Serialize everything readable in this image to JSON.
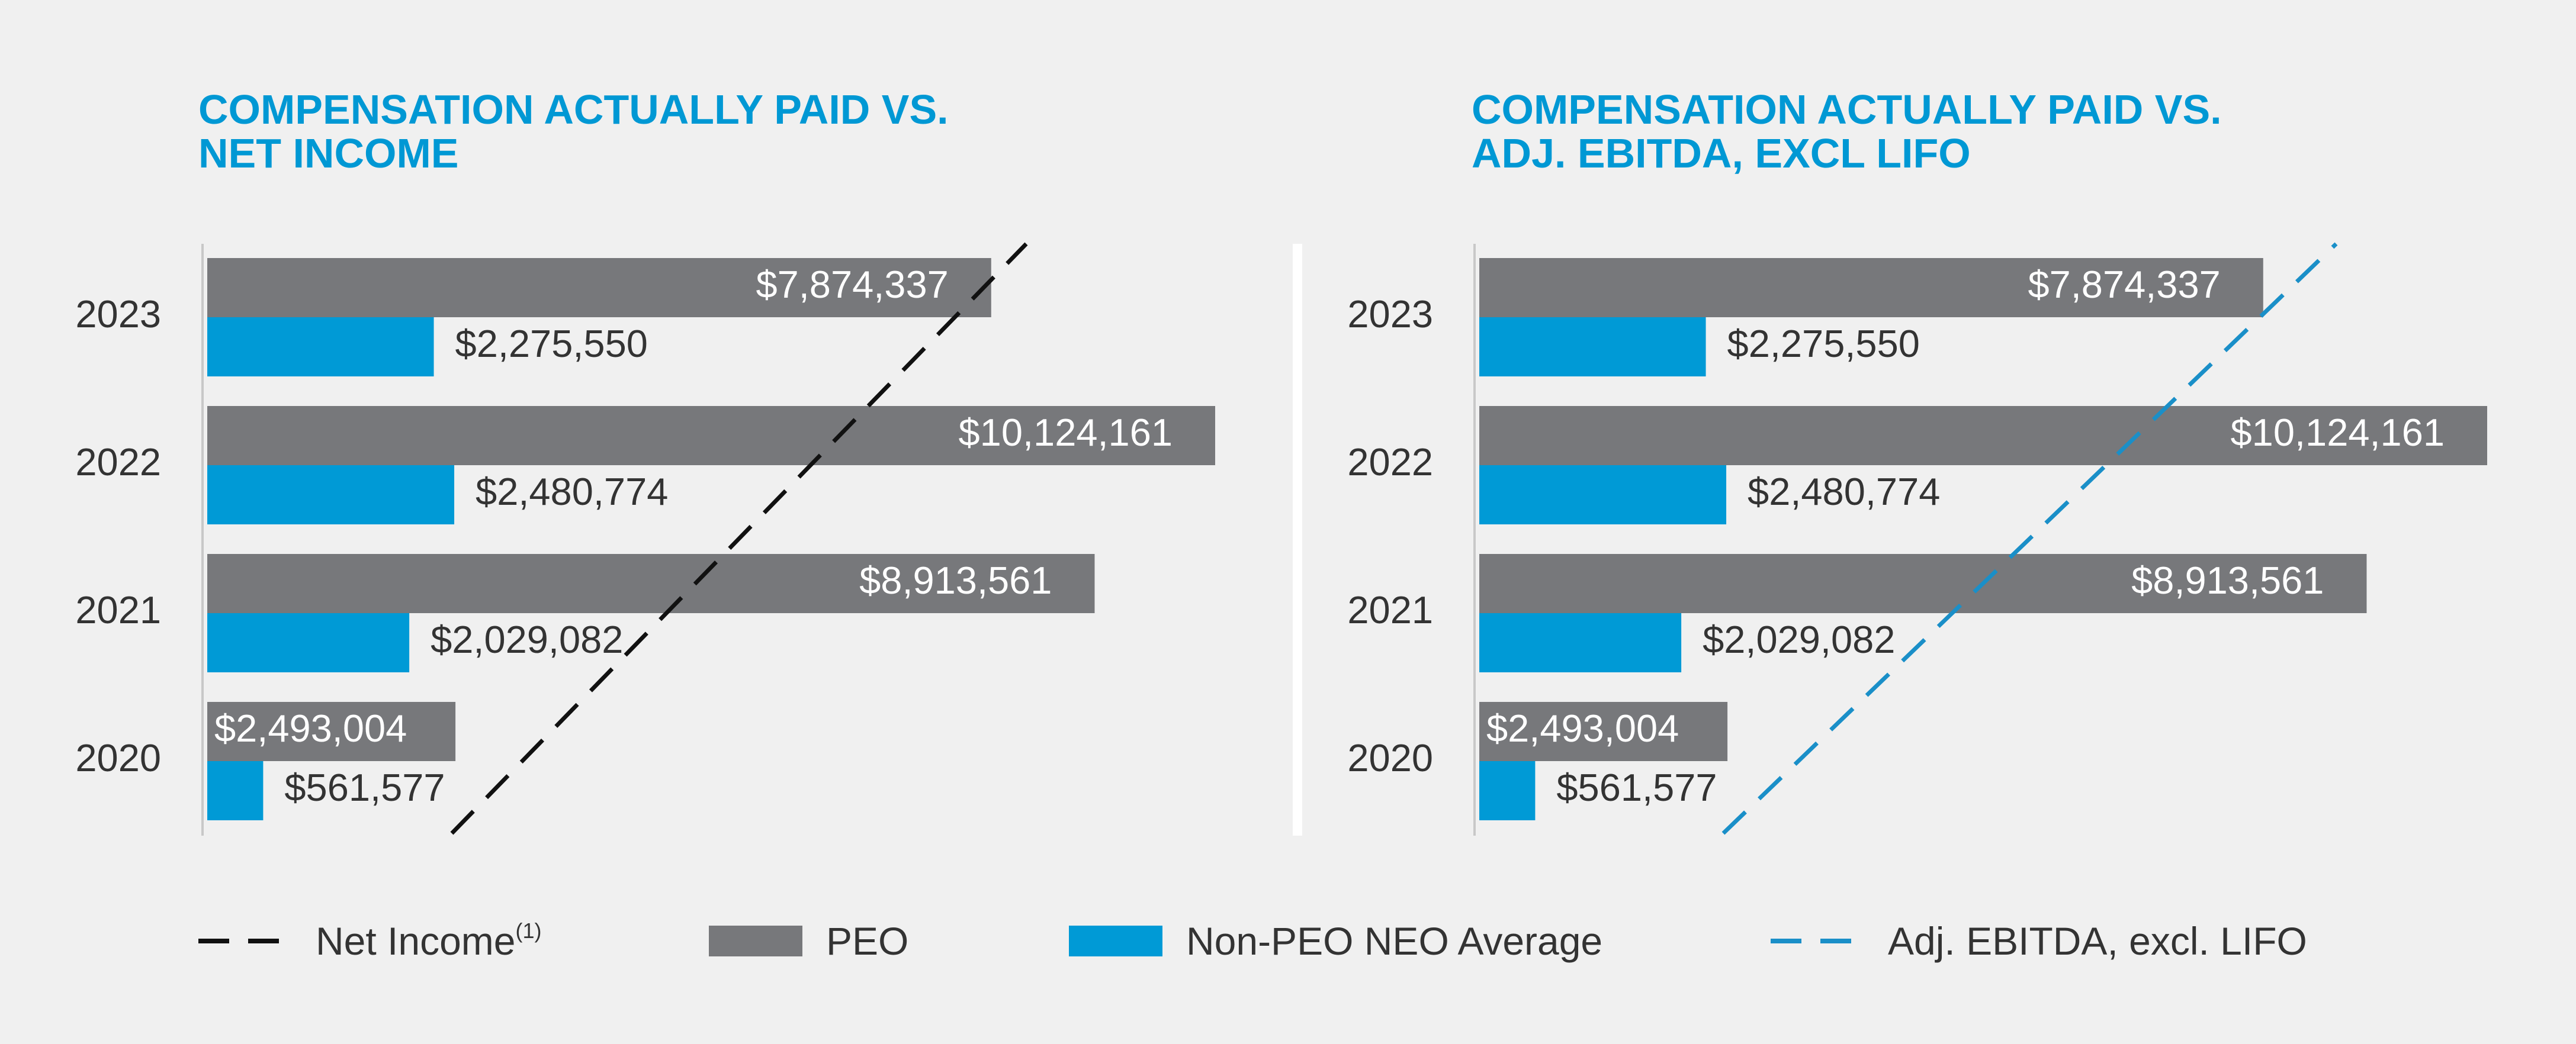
{
  "colors": {
    "peo": "#77787b",
    "non_peo": "#009ad6",
    "net_income_line": "#111111",
    "ebitda_line": "#1a8fc8",
    "title": "#0098d4"
  },
  "chart_data": [
    {
      "type": "bar",
      "orientation": "horizontal",
      "title": "COMPENSATION ACTUALLY PAID VS. NET INCOME",
      "title_lines": [
        "COMPENSATION ACTUALLY PAID VS.",
        "NET INCOME"
      ],
      "categories": [
        "2023",
        "2022",
        "2021",
        "2020"
      ],
      "series": [
        {
          "name": "PEO",
          "values": [
            7874337,
            10124161,
            8913561,
            2493004
          ],
          "labels": [
            "$7,874,337",
            "$10,124,161",
            "$8,913,561",
            "$2,493,004"
          ]
        },
        {
          "name": "Non-PEO NEO Average",
          "values": [
            2275550,
            2480774,
            2029082,
            561577
          ],
          "labels": [
            "$2,275,550",
            "$2,480,774",
            "$2,029,082",
            "$561,577"
          ]
        }
      ],
      "overlay_line": {
        "name": "Net Income",
        "style": "dashed",
        "color": "#111111"
      },
      "xlim": [
        0,
        10124161
      ]
    },
    {
      "type": "bar",
      "orientation": "horizontal",
      "title": "COMPENSATION ACTUALLY PAID VS. ADJ. EBITDA, EXCL LIFO",
      "title_lines": [
        "COMPENSATION ACTUALLY PAID VS.",
        "ADJ. EBITDA, EXCL LIFO"
      ],
      "categories": [
        "2023",
        "2022",
        "2021",
        "2020"
      ],
      "series": [
        {
          "name": "PEO",
          "values": [
            7874337,
            10124161,
            8913561,
            2493004
          ],
          "labels": [
            "$7,874,337",
            "$10,124,161",
            "$8,913,561",
            "$2,493,004"
          ]
        },
        {
          "name": "Non-PEO NEO Average",
          "values": [
            2275550,
            2480774,
            2029082,
            561577
          ],
          "labels": [
            "$2,275,550",
            "$2,480,774",
            "$2,029,082",
            "$561,577"
          ]
        }
      ],
      "overlay_line": {
        "name": "Adj. EBITDA, excl. LIFO",
        "style": "dashed",
        "color": "#1a8fc8"
      },
      "xlim": [
        0,
        10124161
      ]
    }
  ],
  "legend": {
    "net_income": "Net Income",
    "net_income_footnote": "(1)",
    "peo": "PEO",
    "non_peo": "Non-PEO NEO Average",
    "ebitda": "Adj. EBITDA, excl. LIFO"
  }
}
